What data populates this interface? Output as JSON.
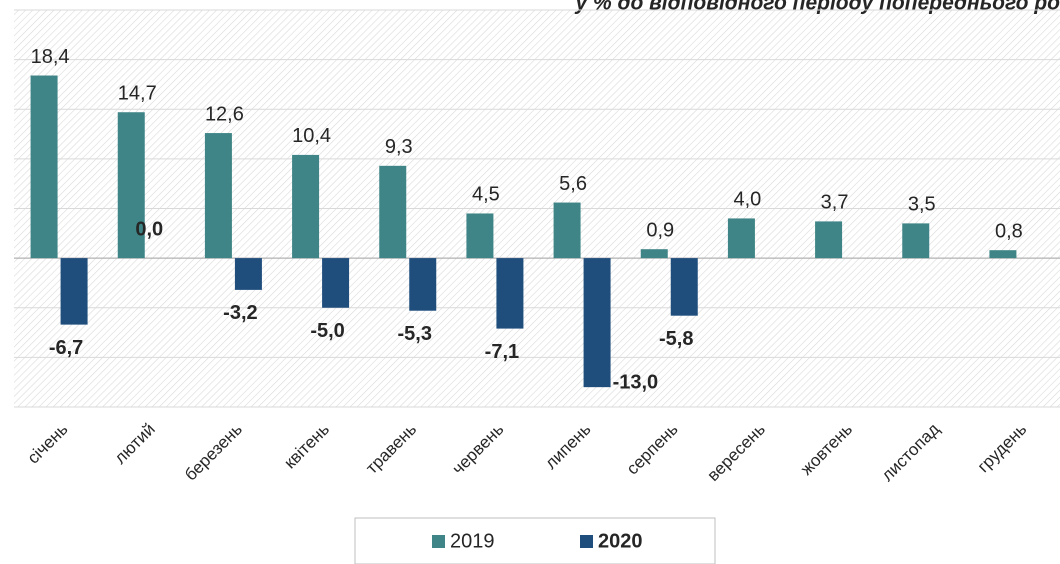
{
  "chart_data": {
    "type": "bar",
    "title": "у % до відповідного періоду попереднього ро",
    "categories": [
      "січень",
      "лютий",
      "березень",
      "квітень",
      "травень",
      "червень",
      "липень",
      "серпень",
      "вересень",
      "жовтень",
      "листопад",
      "грудень"
    ],
    "series": [
      {
        "name": "2019",
        "color": "#3f8587",
        "values": [
          18.4,
          14.7,
          12.6,
          10.4,
          9.3,
          4.5,
          5.6,
          0.9,
          4.0,
          3.7,
          3.5,
          0.8
        ],
        "value_labels": [
          "18,4",
          "14,7",
          "12,6",
          "10,4",
          "9,3",
          "4,5",
          "5,6",
          "0,9",
          "4,0",
          "3,7",
          "3,5",
          "0,8"
        ]
      },
      {
        "name": "2020",
        "color": "#1f4e7d",
        "values": [
          -6.7,
          0.0,
          -3.2,
          -5.0,
          -5.3,
          -7.1,
          -13.0,
          -5.8,
          null,
          null,
          null,
          null
        ],
        "value_labels": [
          "-6,7",
          "0,0",
          "-3,2",
          "-5,0",
          "-5,3",
          "-7,1",
          "-13,0",
          "-5,8",
          null,
          null,
          null,
          null
        ]
      }
    ],
    "ylim": [
      -15,
      25
    ],
    "yticks": [
      -15,
      -10,
      -5,
      0,
      5,
      10,
      15,
      20,
      25
    ],
    "grid": true
  }
}
